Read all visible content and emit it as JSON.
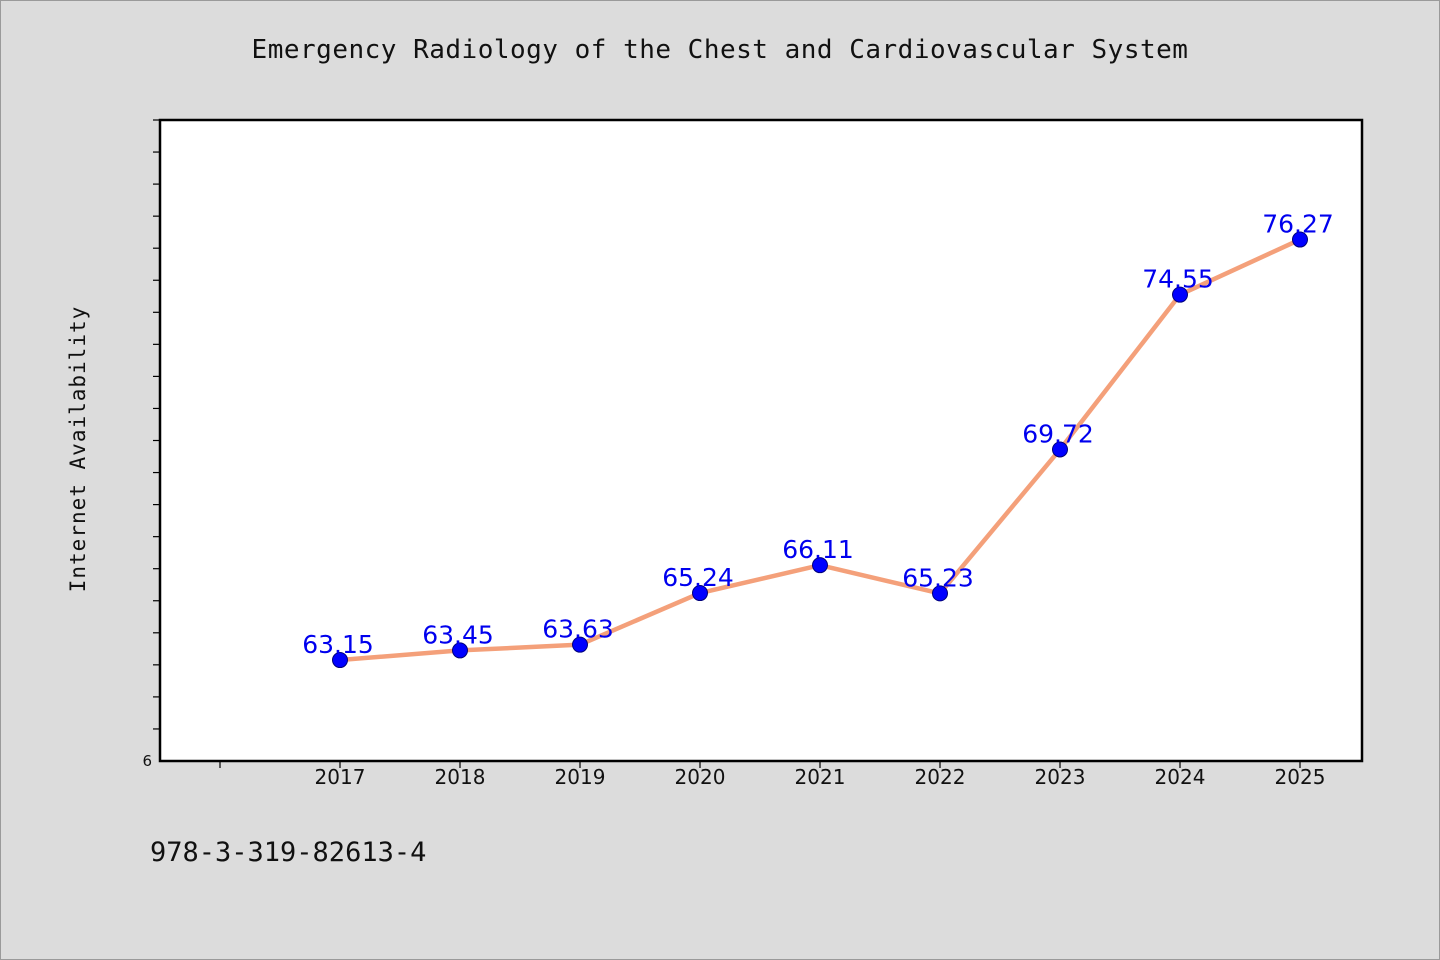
{
  "chart_data": {
    "type": "line",
    "title": "Emergency Radiology of the Chest and Cardiovascular System",
    "xlabel": "",
    "ylabel": "Internet Availability",
    "categories": [
      "2017",
      "2018",
      "2019",
      "2020",
      "2021",
      "2022",
      "2023",
      "2024",
      "2025"
    ],
    "series": [
      {
        "values": [
          63.15,
          63.45,
          63.63,
          65.24,
          66.11,
          65.23,
          69.72,
          74.55,
          76.27
        ]
      }
    ],
    "data_labels": [
      "63.15",
      "63.45",
      "63.63",
      "65.24",
      "66.11",
      "65.23",
      "69.72",
      "74.55",
      "76.27"
    ],
    "ylim": [
      60,
      80
    ],
    "y_tick_labels": [
      "6"
    ],
    "grid": false,
    "line_color": "#f4a07a",
    "marker_color": "#0000ff",
    "label_color": "#0000ee"
  },
  "footer": {
    "id_text": "978-3-319-82613-4"
  }
}
